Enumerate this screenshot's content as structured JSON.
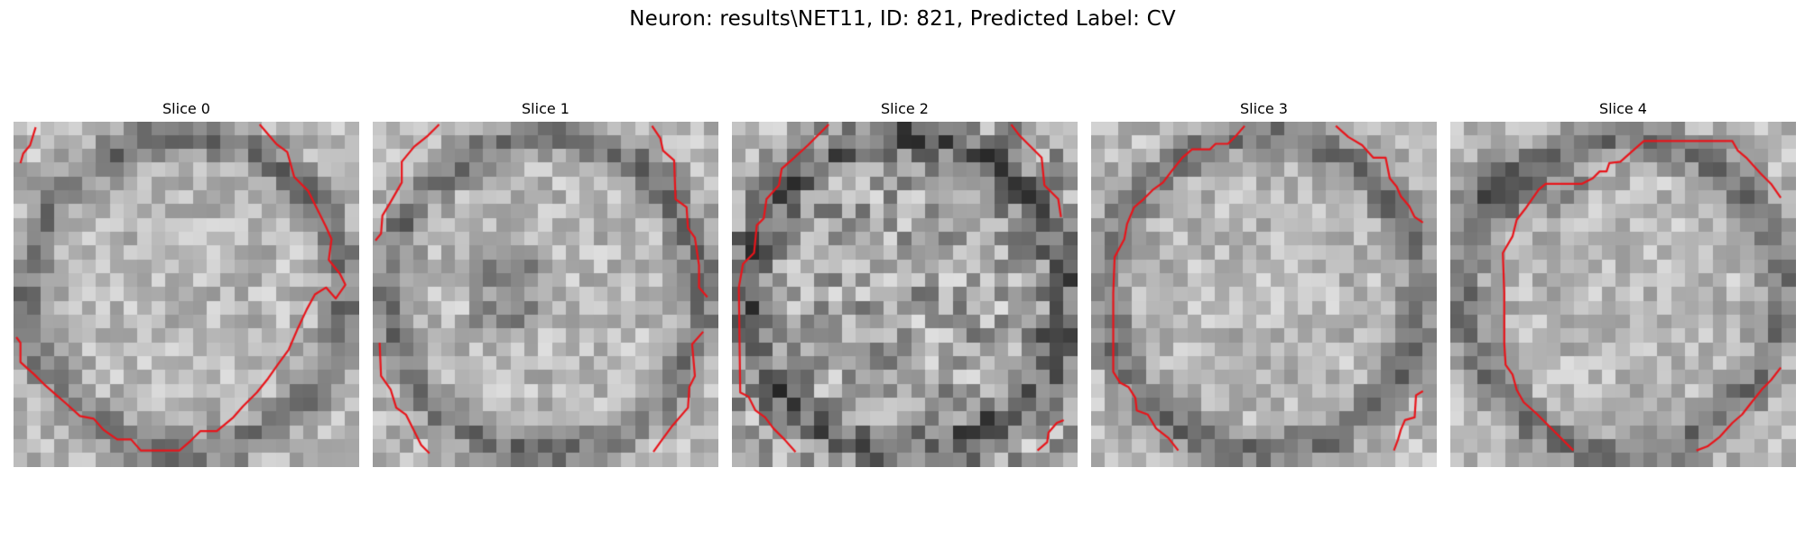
{
  "figure": {
    "title": "Neuron: results\\NET11, ID: 821, Predicted Label: CV",
    "colormap": "gray",
    "contour_color": "#e8151b",
    "grid_size": 25
  },
  "panels": [
    {
      "title": "Slice 0",
      "ring_icon": "membrane-ring",
      "contours": [
        [
          [
            0.5,
            3.0
          ],
          [
            0.7,
            2.3
          ],
          [
            1.2,
            1.7
          ],
          [
            1.6,
            0.4
          ]
        ],
        [
          [
            17.8,
            0.2
          ],
          [
            19.0,
            1.6
          ],
          [
            19.8,
            2.2
          ],
          [
            20.3,
            4.0
          ],
          [
            21.3,
            5.0
          ],
          [
            22.6,
            7.6
          ],
          [
            23.0,
            8.5
          ],
          [
            22.8,
            10.0
          ],
          [
            23.6,
            11.0
          ],
          [
            24.0,
            11.8
          ],
          [
            23.3,
            12.8
          ],
          [
            22.6,
            12.0
          ],
          [
            21.8,
            12.5
          ],
          [
            21.2,
            13.6
          ],
          [
            20.5,
            15.1
          ],
          [
            19.9,
            16.5
          ],
          [
            19.1,
            17.6
          ],
          [
            18.4,
            18.6
          ],
          [
            17.6,
            19.6
          ],
          [
            16.6,
            20.6
          ],
          [
            15.9,
            21.4
          ],
          [
            14.7,
            22.4
          ],
          [
            13.5,
            22.4
          ],
          [
            12.7,
            23.2
          ],
          [
            12.0,
            23.8
          ],
          [
            9.2,
            23.8
          ],
          [
            8.5,
            23.0
          ],
          [
            7.5,
            23.0
          ],
          [
            6.5,
            22.3
          ],
          [
            5.8,
            21.5
          ],
          [
            4.8,
            21.3
          ],
          [
            3.8,
            20.4
          ],
          [
            3.0,
            19.7
          ],
          [
            2.2,
            19.0
          ],
          [
            1.5,
            18.3
          ],
          [
            0.5,
            17.4
          ],
          [
            0.5,
            16.0
          ],
          [
            0.2,
            15.6
          ]
        ]
      ]
    },
    {
      "title": "Slice 1",
      "ring_icon": "membrane-ring",
      "contours": [
        [
          [
            0.2,
            8.6
          ],
          [
            0.6,
            8.1
          ],
          [
            0.7,
            6.8
          ],
          [
            1.3,
            5.8
          ],
          [
            2.1,
            4.4
          ],
          [
            2.1,
            2.9
          ],
          [
            3.0,
            1.8
          ],
          [
            4.0,
            1.0
          ],
          [
            4.8,
            0.2
          ]
        ],
        [
          [
            20.2,
            0.3
          ],
          [
            20.8,
            1.2
          ],
          [
            21.0,
            2.1
          ],
          [
            21.8,
            2.8
          ],
          [
            21.9,
            5.6
          ],
          [
            22.7,
            6.2
          ],
          [
            22.8,
            7.7
          ],
          [
            23.3,
            8.4
          ],
          [
            23.6,
            10.4
          ],
          [
            23.6,
            12.0
          ],
          [
            24.2,
            12.7
          ]
        ],
        [
          [
            0.5,
            16.0
          ],
          [
            0.6,
            18.4
          ],
          [
            1.3,
            19.4
          ],
          [
            1.7,
            20.7
          ],
          [
            2.4,
            21.2
          ],
          [
            2.9,
            22.2
          ],
          [
            3.5,
            23.4
          ],
          [
            4.1,
            24.0
          ]
        ],
        [
          [
            23.9,
            15.2
          ],
          [
            23.1,
            16.1
          ],
          [
            23.3,
            18.4
          ],
          [
            22.9,
            19.2
          ],
          [
            22.8,
            20.7
          ],
          [
            21.6,
            22.1
          ],
          [
            20.8,
            23.2
          ],
          [
            20.3,
            23.9
          ]
        ]
      ]
    },
    {
      "title": "Slice 2",
      "ring_icon": "membrane-ring",
      "contours": [
        [
          [
            0.5,
            12.0
          ],
          [
            0.8,
            10.3
          ],
          [
            1.6,
            9.5
          ],
          [
            1.8,
            7.5
          ],
          [
            2.3,
            7.0
          ],
          [
            2.5,
            5.6
          ],
          [
            3.4,
            4.6
          ],
          [
            3.6,
            3.4
          ],
          [
            4.4,
            2.7
          ],
          [
            5.5,
            1.7
          ],
          [
            6.4,
            0.8
          ],
          [
            7.0,
            0.2
          ]
        ],
        [
          [
            20.2,
            0.2
          ],
          [
            20.8,
            1.0
          ],
          [
            21.6,
            1.8
          ],
          [
            22.4,
            2.6
          ],
          [
            22.6,
            4.6
          ],
          [
            23.6,
            5.6
          ],
          [
            23.8,
            6.9
          ]
        ],
        [
          [
            0.5,
            12.0
          ],
          [
            0.6,
            19.6
          ],
          [
            1.2,
            19.9
          ],
          [
            1.7,
            20.9
          ],
          [
            2.4,
            21.4
          ],
          [
            3.0,
            22.2
          ],
          [
            3.8,
            23.0
          ],
          [
            4.6,
            23.9
          ]
        ],
        [
          [
            24.0,
            21.6
          ],
          [
            23.5,
            21.8
          ],
          [
            22.9,
            22.5
          ],
          [
            22.8,
            23.2
          ],
          [
            22.1,
            23.8
          ]
        ]
      ]
    },
    {
      "title": "Slice 3",
      "ring_icon": "membrane-ring",
      "contours": [
        [
          [
            11.1,
            0.3
          ],
          [
            10.5,
            1.0
          ],
          [
            9.9,
            1.6
          ],
          [
            9.0,
            1.6
          ],
          [
            8.6,
            2.0
          ],
          [
            7.3,
            2.0
          ],
          [
            6.6,
            2.6
          ],
          [
            5.8,
            3.6
          ],
          [
            5.2,
            4.4
          ],
          [
            4.5,
            4.9
          ],
          [
            3.8,
            5.6
          ],
          [
            3.1,
            6.2
          ],
          [
            2.6,
            7.4
          ],
          [
            2.4,
            8.5
          ],
          [
            1.7,
            9.8
          ],
          [
            1.6,
            12.4
          ],
          [
            1.6,
            18.1
          ],
          [
            2.1,
            18.9
          ],
          [
            2.7,
            19.2
          ],
          [
            3.2,
            20.0
          ],
          [
            3.3,
            20.9
          ],
          [
            4.1,
            21.2
          ],
          [
            4.7,
            22.2
          ],
          [
            5.6,
            22.9
          ],
          [
            6.3,
            23.8
          ]
        ],
        [
          [
            17.7,
            0.3
          ],
          [
            18.6,
            1.1
          ],
          [
            19.6,
            1.7
          ],
          [
            20.4,
            2.6
          ],
          [
            21.3,
            2.6
          ],
          [
            21.6,
            4.1
          ],
          [
            22.1,
            4.7
          ],
          [
            22.4,
            5.4
          ],
          [
            23.0,
            6.1
          ],
          [
            23.4,
            6.9
          ],
          [
            24.0,
            7.3
          ]
        ],
        [
          [
            24.0,
            19.5
          ],
          [
            23.5,
            19.8
          ],
          [
            23.4,
            21.4
          ],
          [
            22.7,
            21.6
          ],
          [
            22.4,
            22.3
          ],
          [
            22.2,
            23.0
          ],
          [
            21.9,
            23.8
          ]
        ]
      ]
    },
    {
      "title": "Slice 4",
      "ring_icon": "membrane-ring",
      "contours": [
        [
          [
            8.9,
            23.8
          ],
          [
            8.0,
            22.9
          ],
          [
            7.1,
            22.0
          ],
          [
            6.2,
            21.1
          ],
          [
            5.3,
            20.3
          ],
          [
            4.8,
            19.4
          ],
          [
            4.5,
            18.3
          ],
          [
            4.0,
            17.6
          ],
          [
            3.9,
            16.0
          ],
          [
            3.9,
            12.4
          ],
          [
            3.8,
            9.5
          ],
          [
            4.5,
            8.3
          ],
          [
            4.8,
            7.1
          ],
          [
            5.5,
            6.2
          ],
          [
            6.4,
            4.9
          ],
          [
            6.9,
            4.5
          ],
          [
            9.5,
            4.5
          ],
          [
            10.3,
            4.1
          ],
          [
            10.8,
            3.6
          ],
          [
            11.3,
            3.6
          ],
          [
            11.5,
            3.0
          ],
          [
            12.3,
            2.9
          ],
          [
            13.2,
            2.1
          ],
          [
            14.0,
            1.4
          ],
          [
            17.5,
            1.4
          ],
          [
            20.4,
            1.4
          ],
          [
            20.8,
            2.1
          ],
          [
            21.4,
            2.6
          ],
          [
            22.4,
            3.7
          ],
          [
            23.2,
            4.5
          ],
          [
            23.9,
            5.5
          ]
        ],
        [
          [
            23.9,
            17.8
          ],
          [
            23.2,
            18.7
          ],
          [
            22.6,
            19.3
          ],
          [
            21.8,
            20.3
          ],
          [
            21.1,
            21.2
          ],
          [
            20.4,
            21.8
          ],
          [
            19.5,
            22.8
          ],
          [
            18.6,
            23.5
          ],
          [
            17.8,
            23.8
          ]
        ]
      ]
    }
  ]
}
